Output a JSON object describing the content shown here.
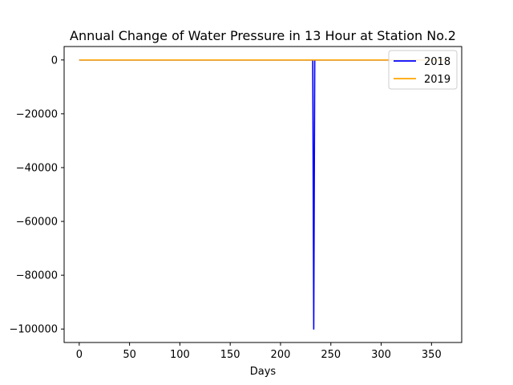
{
  "chart_data": {
    "type": "line",
    "title": "Annual Change of Water Pressure in 13 Hour at Station No.2",
    "xlabel": "Days",
    "ylabel": "",
    "xlim": [
      -15,
      380
    ],
    "ylim": [
      -105000,
      5000
    ],
    "xticks": [
      0,
      50,
      100,
      150,
      200,
      250,
      300,
      350
    ],
    "yticks": [
      0,
      -20000,
      -40000,
      -60000,
      -80000,
      -100000
    ],
    "ytick_labels": [
      "0",
      "−20000",
      "−40000",
      "−60000",
      "−80000",
      "−100000"
    ],
    "grid": false,
    "legend_position": "top-right",
    "series": [
      {
        "name": "2018",
        "color": "#0000ff",
        "x": [
          0,
          232,
          233,
          234,
          235,
          365
        ],
        "y": [
          0,
          0,
          -100000,
          0,
          0,
          0
        ]
      },
      {
        "name": "2019",
        "color": "#ffa500",
        "x": [
          0,
          365
        ],
        "y": [
          0,
          0
        ]
      }
    ]
  }
}
